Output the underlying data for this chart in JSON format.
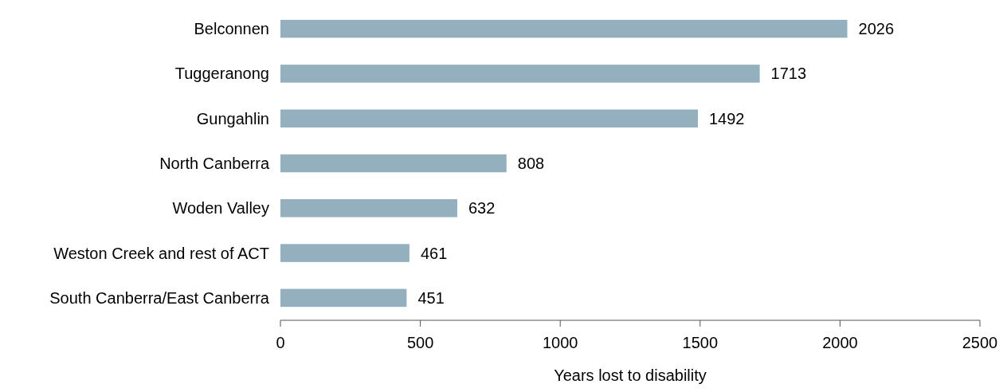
{
  "chart_data": {
    "type": "bar",
    "orientation": "horizontal",
    "categories": [
      "Belconnen",
      "Tuggeranong",
      "Gungahlin",
      "North Canberra",
      "Woden Valley",
      "Weston Creek and rest of ACT",
      "South Canberra/East Canberra"
    ],
    "values": [
      2026,
      1713,
      1492,
      808,
      632,
      461,
      451
    ],
    "color": "#94afbd",
    "xlim": [
      0,
      2500
    ],
    "xticks": [
      0,
      500,
      1000,
      1500,
      2000,
      2500
    ],
    "xlabel": "Years lost to disability",
    "data_labels": true
  }
}
